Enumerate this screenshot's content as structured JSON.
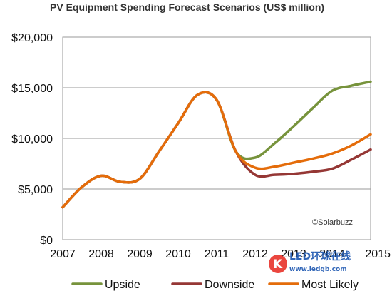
{
  "chart_data": {
    "type": "line",
    "title": "PV Equipment Spending Forecast Scenarios (US$ million)",
    "x": [
      2007,
      2007.5,
      2008,
      2008.5,
      2009,
      2009.5,
      2010,
      2010.5,
      2011,
      2011.5,
      2012,
      2012.5,
      2013,
      2013.5,
      2014,
      2014.5,
      2015
    ],
    "x_tick_labels": [
      "2007",
      "2008",
      "2009",
      "2010",
      "2011",
      "2012",
      "2013",
      "2014",
      "2015"
    ],
    "y_tick_labels": [
      "$0",
      "$5,000",
      "$10,000",
      "$15,000",
      "$20,000"
    ],
    "ylim": [
      0,
      20000
    ],
    "xlim": [
      2007,
      2015
    ],
    "series": [
      {
        "name": "Upside",
        "color": "#77933c",
        "values": [
          3200,
          5200,
          6300,
          5700,
          6000,
          8700,
          11500,
          14300,
          13800,
          8700,
          8100,
          9500,
          11200,
          13000,
          14700,
          15200,
          15600
        ]
      },
      {
        "name": "Downside",
        "color": "#953735",
        "values": [
          3200,
          5200,
          6300,
          5700,
          6000,
          8700,
          11500,
          14300,
          13800,
          8700,
          6400,
          6400,
          6500,
          6700,
          7000,
          7900,
          8900
        ]
      },
      {
        "name": "Most Likely",
        "color": "#e46c0a",
        "values": [
          3200,
          5200,
          6300,
          5700,
          6000,
          8700,
          11500,
          14300,
          13800,
          8700,
          7100,
          7200,
          7600,
          8000,
          8500,
          9300,
          10400
        ]
      }
    ],
    "grid": true,
    "legend_position": "bottom",
    "annotation": "©Solarbuzz"
  },
  "watermark": {
    "logo_letter": "K",
    "text": "LED环球在线",
    "url": "www.ledgb.com"
  }
}
